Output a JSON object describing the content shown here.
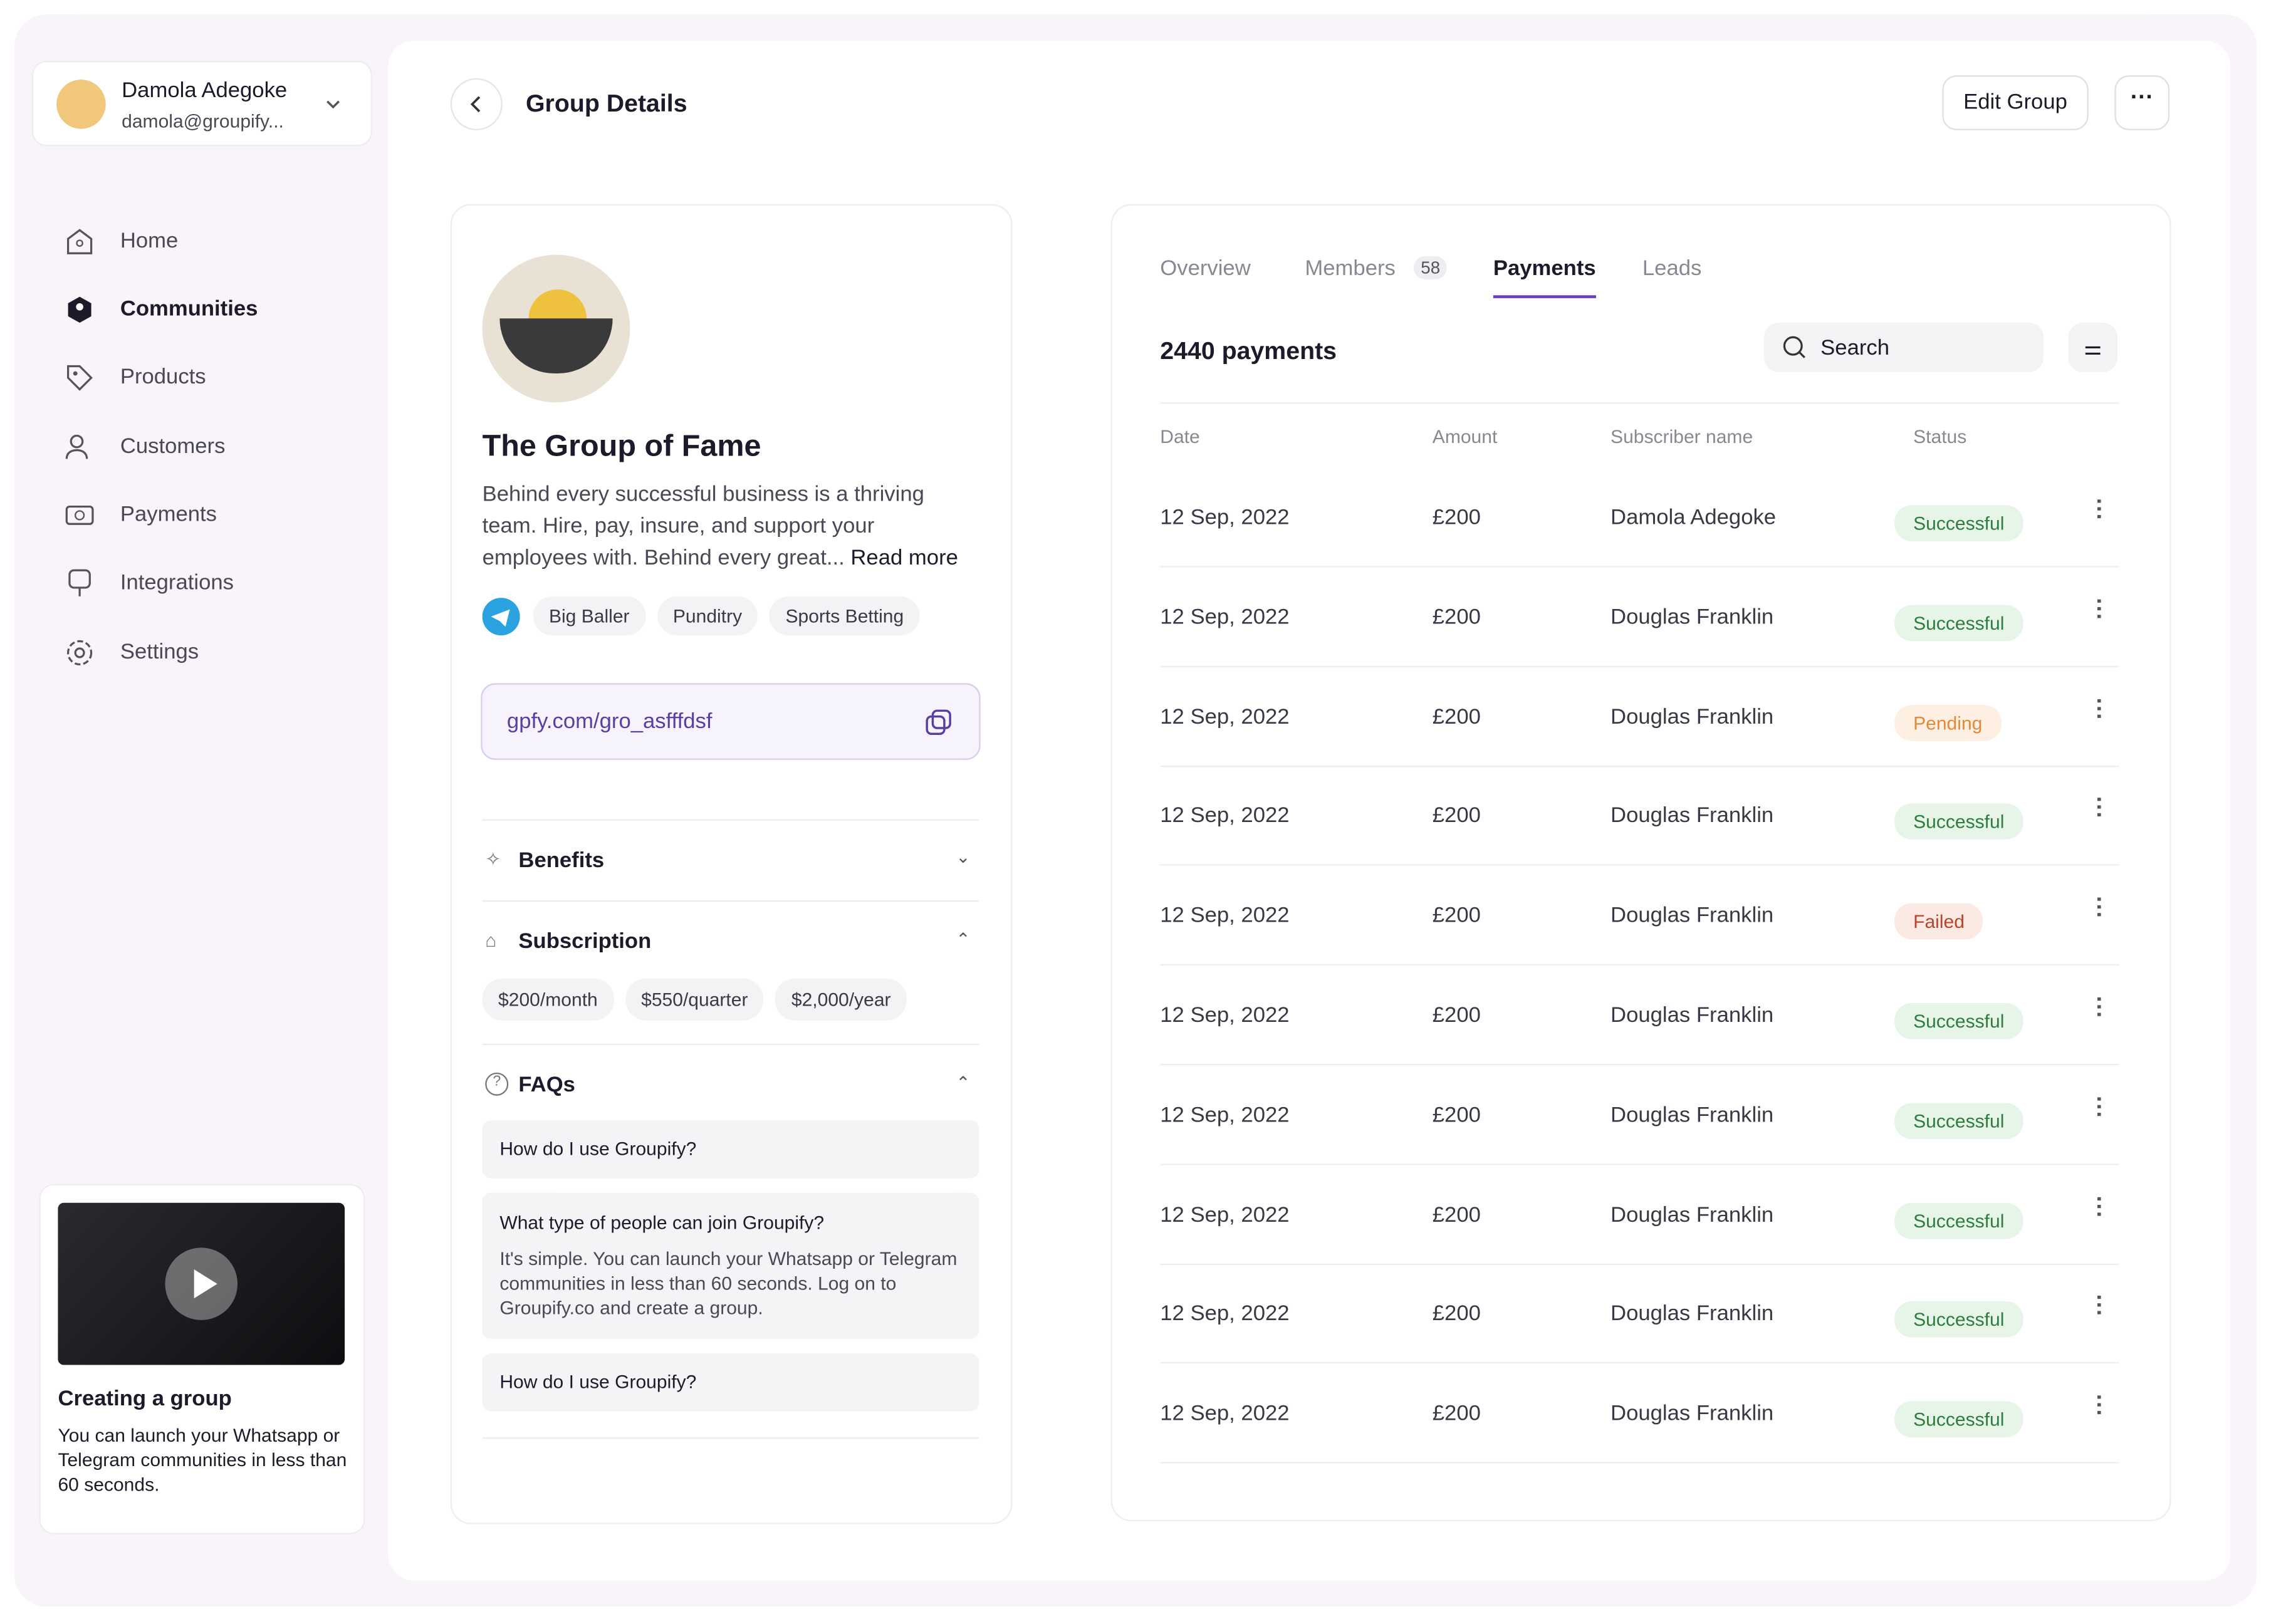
{
  "user": {
    "name": "Damola Adegoke",
    "email": "damola@groupify..."
  },
  "nav": [
    "Home",
    "Communities",
    "Products",
    "Customers",
    "Payments",
    "Integrations",
    "Settings"
  ],
  "promo": {
    "title": "Creating a group",
    "text": "You can launch your Whatsapp or Telegram communities in less than 60 seconds."
  },
  "header": {
    "title": "Group Details",
    "edit_button": "Edit Group"
  },
  "group": {
    "name": "The Group of Fame",
    "description": "Behind every successful business is a thriving team. Hire, pay, insure, and support your employees with. Behind every great...",
    "read_more": "Read more",
    "tags": [
      "Big Baller",
      "Punditry",
      "Sports Betting"
    ],
    "link": "gpfy.com/gro_asfffdsf",
    "benefits": "Benefits",
    "subscription": "Subscription",
    "prices": [
      "$200/month",
      "$550/quarter",
      "$2,000/year"
    ],
    "faqs_title": "FAQs",
    "faqs": [
      {
        "q": "How do I use Groupify?"
      },
      {
        "q": "What type of people can join Groupify?",
        "a": "It's simple. You can launch your Whatsapp or Telegram communities in less than 60 seconds. Log on to Groupify.co and create a group."
      },
      {
        "q": "How do I use Groupify?"
      }
    ]
  },
  "payments": {
    "tabs": [
      "Overview",
      "Members",
      "Payments",
      "Leads"
    ],
    "members_count": "58",
    "count_label": "2440 payments",
    "search": "Search",
    "columns": [
      "Date",
      "Amount",
      "Subscriber name",
      "Status"
    ],
    "rows": [
      [
        "12 Sep, 2022",
        "£200",
        "Damola Adegoke",
        "Successful"
      ],
      [
        "12 Sep, 2022",
        "£200",
        "Douglas Franklin",
        "Successful"
      ],
      [
        "12 Sep, 2022",
        "£200",
        "Douglas Franklin",
        "Pending"
      ],
      [
        "12 Sep, 2022",
        "£200",
        "Douglas Franklin",
        "Successful"
      ],
      [
        "12 Sep, 2022",
        "£200",
        "Douglas Franklin",
        "Failed"
      ],
      [
        "12 Sep, 2022",
        "£200",
        "Douglas Franklin",
        "Successful"
      ],
      [
        "12 Sep, 2022",
        "£200",
        "Douglas Franklin",
        "Successful"
      ],
      [
        "12 Sep, 2022",
        "£200",
        "Douglas Franklin",
        "Successful"
      ],
      [
        "12 Sep, 2022",
        "£200",
        "Douglas Franklin",
        "Successful"
      ],
      [
        "12 Sep, 2022",
        "£200",
        "Douglas Franklin",
        "Successful"
      ]
    ]
  }
}
